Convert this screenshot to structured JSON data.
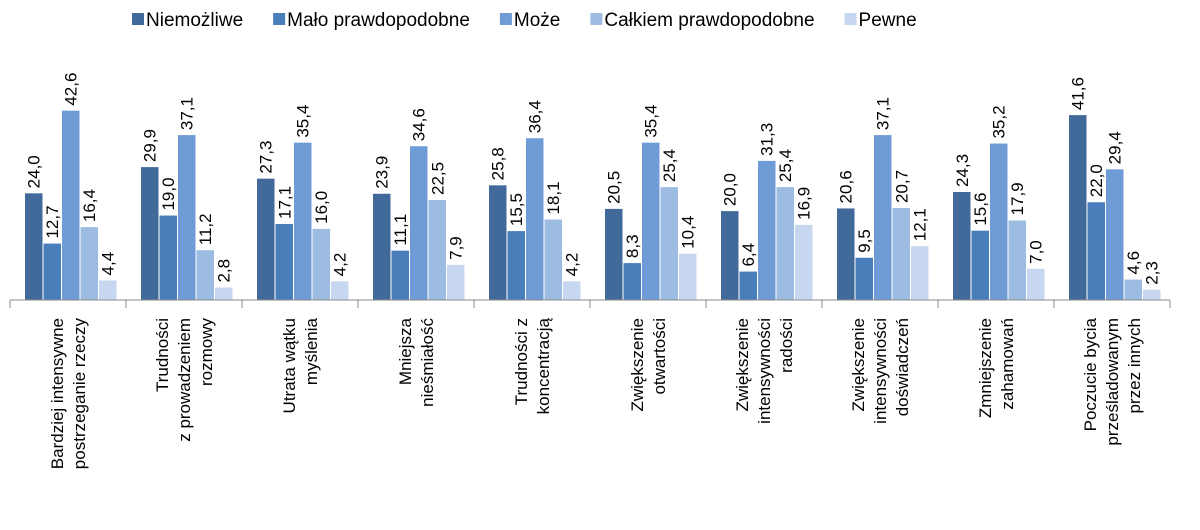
{
  "chart_data": {
    "type": "bar",
    "categories": [
      [
        "Bardziej intensywne",
        "postrzeganie rzeczy"
      ],
      [
        "Trudności",
        "z prowadzeniem",
        "rozmowy"
      ],
      [
        "Utrata wątku",
        "myślenia"
      ],
      [
        "Mniejsza",
        "nieśmiałość"
      ],
      [
        "Trudności z",
        "koncentracją"
      ],
      [
        "Zwiększenie",
        "otwartości"
      ],
      [
        "Zwiększenie",
        "intensywności",
        "radości"
      ],
      [
        "Zwiększenie",
        "intensywności",
        "doświadczeń"
      ],
      [
        "Zmniejszenie",
        "zahamowań"
      ],
      [
        "Poczucie bycia",
        "prześladowanym",
        "przez innych"
      ]
    ],
    "series": [
      {
        "name": "Niemożliwe",
        "color": "#41699a",
        "values": [
          24.0,
          29.9,
          27.3,
          23.9,
          25.8,
          20.5,
          20.0,
          20.6,
          24.3,
          41.6
        ],
        "value_labels": [
          "24,0",
          "29,9",
          "27,3",
          "23,9",
          "25,8",
          "20,5",
          "20,0",
          "20,6",
          "24,3",
          "41,6"
        ]
      },
      {
        "name": "Mało prawdopodobne",
        "color": "#4a7ebb",
        "values": [
          12.7,
          19.0,
          17.1,
          11.1,
          15.5,
          8.3,
          6.4,
          9.5,
          15.6,
          22.0
        ],
        "value_labels": [
          "12,7",
          "19,0",
          "17,1",
          "11,1",
          "15,5",
          "8,3",
          "6,4",
          "9,5",
          "15,6",
          "22,0"
        ]
      },
      {
        "name": "Może",
        "color": "#6f9bd6",
        "values": [
          42.6,
          37.1,
          35.4,
          34.6,
          36.4,
          35.4,
          31.3,
          37.1,
          35.2,
          29.4
        ],
        "value_labels": [
          "42,6",
          "37,1",
          "35,4",
          "34,6",
          "36,4",
          "35,4",
          "31,3",
          "37,1",
          "35,2",
          "29,4"
        ]
      },
      {
        "name": "Całkiem prawdopodobne",
        "color": "#9dbce2",
        "values": [
          16.4,
          11.2,
          16.0,
          22.5,
          18.1,
          25.4,
          25.4,
          20.7,
          17.9,
          4.6
        ],
        "value_labels": [
          "16,4",
          "11,2",
          "16,0",
          "22,5",
          "18,1",
          "25,4",
          "25,4",
          "20,7",
          "17,9",
          "4,6"
        ]
      },
      {
        "name": "Pewne",
        "color": "#c6d7ef",
        "values": [
          4.4,
          2.8,
          4.2,
          7.9,
          4.2,
          10.4,
          16.9,
          12.1,
          7.0,
          2.3
        ],
        "value_labels": [
          "4,4",
          "2,8",
          "4,2",
          "7,9",
          "4,2",
          "10,4",
          "16,9",
          "12,1",
          "7,0",
          "2,3"
        ]
      }
    ],
    "ylim": [
      0,
      45
    ],
    "legend": "top"
  }
}
